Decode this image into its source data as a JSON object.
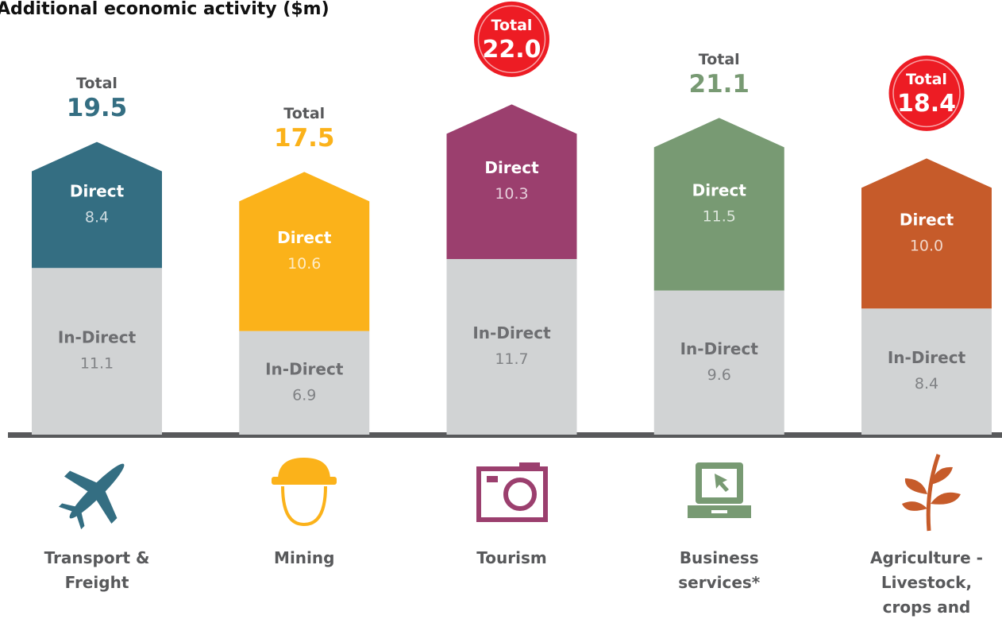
{
  "chart_data": {
    "type": "bar",
    "stacked": true,
    "title": "Additional economic activity ($m)",
    "categories": [
      "Transport & Freight",
      "Mining",
      "Tourism",
      "Business services*",
      "Agriculture - Livestock, crops and horticulture"
    ],
    "series": [
      {
        "name": "In-Direct",
        "color": "#d1d3d4",
        "values": [
          11.1,
          6.9,
          11.7,
          9.6,
          8.4
        ]
      },
      {
        "name": "Direct",
        "colors": [
          "#346e82",
          "#fbb21a",
          "#9b3f6e",
          "#789a73",
          "#c65b2a"
        ],
        "values": [
          8.4,
          10.6,
          10.3,
          11.5,
          10.0
        ],
        "value_labels": [
          "8.4",
          "10.6",
          "10.3",
          "11.5",
          "10.0"
        ]
      }
    ],
    "total_label": "Total",
    "totals": [
      19.5,
      17.5,
      22.0,
      21.1,
      18.4
    ],
    "total_value_labels": [
      "19.5",
      "17.5",
      "22.0",
      "21.1",
      "18.4"
    ],
    "highlight_color": "#ed1c24",
    "highlighted": [
      false,
      false,
      true,
      false,
      true
    ],
    "ylim": [
      0,
      28
    ]
  }
}
